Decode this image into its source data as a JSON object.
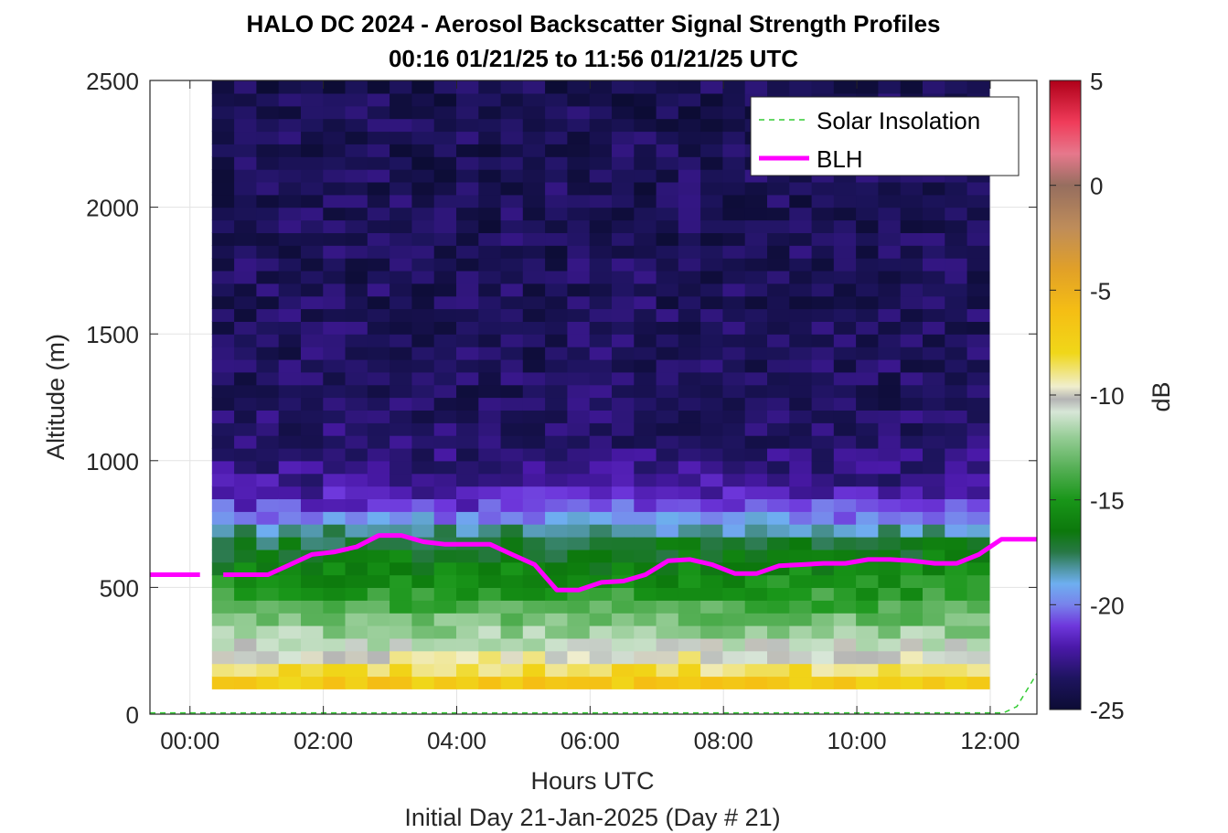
{
  "chart_data": {
    "type": "heatmap",
    "title": "HALO DC 2024 - Aerosol Backscatter Signal Strength Profiles",
    "subtitle": "00:16 01/21/25 to 11:56 01/21/25  UTC",
    "xlabel": "Hours UTC",
    "xlabel2": "Initial Day 21-Jan-2025 (Day # 21)",
    "ylabel": "Altitude (m)",
    "colorbar_label": "dB",
    "x_range_hours": [
      -0.6,
      12.7
    ],
    "ylim": [
      0,
      2500
    ],
    "x_ticks": [
      {
        "v": 0,
        "label": "00:00"
      },
      {
        "v": 2,
        "label": "02:00"
      },
      {
        "v": 4,
        "label": "04:00"
      },
      {
        "v": 6,
        "label": "06:00"
      },
      {
        "v": 8,
        "label": "08:00"
      },
      {
        "v": 10,
        "label": "10:00"
      },
      {
        "v": 12,
        "label": "12:00"
      }
    ],
    "y_ticks": [
      {
        "v": 0,
        "label": "0"
      },
      {
        "v": 500,
        "label": "500"
      },
      {
        "v": 1000,
        "label": "1000"
      },
      {
        "v": 1500,
        "label": "1500"
      },
      {
        "v": 2000,
        "label": "2000"
      },
      {
        "v": 2500,
        "label": "2500"
      }
    ],
    "colorbar_range": [
      -25,
      5
    ],
    "colorbar_ticks": [
      {
        "v": 5,
        "label": "5"
      },
      {
        "v": 0,
        "label": "0"
      },
      {
        "v": -5,
        "label": "-5"
      },
      {
        "v": -10,
        "label": "-10"
      },
      {
        "v": -15,
        "label": "-15"
      },
      {
        "v": -20,
        "label": "-20"
      },
      {
        "v": -25,
        "label": "-25"
      }
    ],
    "heatmap": {
      "time_start_hours": 0.33,
      "time_step_hours": 0.333,
      "columns": 35,
      "altitude_start_m": 100,
      "altitude_step_m": 50,
      "rows": 48,
      "profile_db": [
        {
          "alt": 100,
          "db": -6.5
        },
        {
          "alt": 150,
          "db": -7.5
        },
        {
          "alt": 200,
          "db": -9
        },
        {
          "alt": 250,
          "db": -10.5
        },
        {
          "alt": 300,
          "db": -11.5
        },
        {
          "alt": 350,
          "db": -12.5
        },
        {
          "alt": 400,
          "db": -13.5
        },
        {
          "alt": 450,
          "db": -14.3
        },
        {
          "alt": 500,
          "db": -15
        },
        {
          "alt": 550,
          "db": -15.6
        },
        {
          "alt": 600,
          "db": -16.2
        },
        {
          "alt": 650,
          "db": -16.8
        },
        {
          "alt": 700,
          "db": -17.5
        },
        {
          "alt": 750,
          "db": -19
        },
        {
          "alt": 800,
          "db": -20.5
        },
        {
          "alt": 850,
          "db": -21.5
        },
        {
          "alt": 900,
          "db": -22.3
        },
        {
          "alt": 1000,
          "db": -23
        },
        {
          "alt": 1200,
          "db": -23.6
        },
        {
          "alt": 2500,
          "db": -24
        }
      ]
    },
    "series": [
      {
        "name": "Solar Insolation",
        "color": "#33cc33",
        "style": "dashed",
        "x": [
          -0.6,
          12.2,
          12.4,
          12.7
        ],
        "y": [
          5,
          5,
          30,
          160
        ]
      },
      {
        "name": "BLH",
        "color": "#ff00ff",
        "style": "solid",
        "segments": [
          {
            "x": [
              -0.6,
              0.15
            ],
            "y": [
              550,
              550
            ]
          },
          {
            "x": [
              0.5,
              0.83,
              1.17,
              1.5,
              1.83,
              2.17,
              2.5,
              2.83,
              3.17,
              3.5,
              3.83,
              4.17,
              4.5,
              4.83,
              5.17,
              5.5,
              5.83,
              6.17,
              6.5,
              6.83,
              7.17,
              7.5,
              7.83,
              8.17,
              8.5,
              8.83,
              9.17,
              9.5,
              9.83,
              10.17,
              10.5,
              10.83,
              11.17,
              11.5,
              11.83,
              12.17,
              12.5,
              12.7
            ],
            "y": [
              550,
              550,
              550,
              590,
              630,
              640,
              660,
              705,
              705,
              680,
              670,
              670,
              670,
              630,
              590,
              490,
              490,
              520,
              525,
              550,
              605,
              610,
              590,
              555,
              555,
              585,
              590,
              595,
              595,
              610,
              610,
              605,
              595,
              595,
              630,
              690,
              690,
              690
            ]
          }
        ]
      }
    ],
    "legend": {
      "placement": "top-right",
      "entries": [
        "Solar Insolation",
        "BLH"
      ]
    },
    "grid": true
  }
}
